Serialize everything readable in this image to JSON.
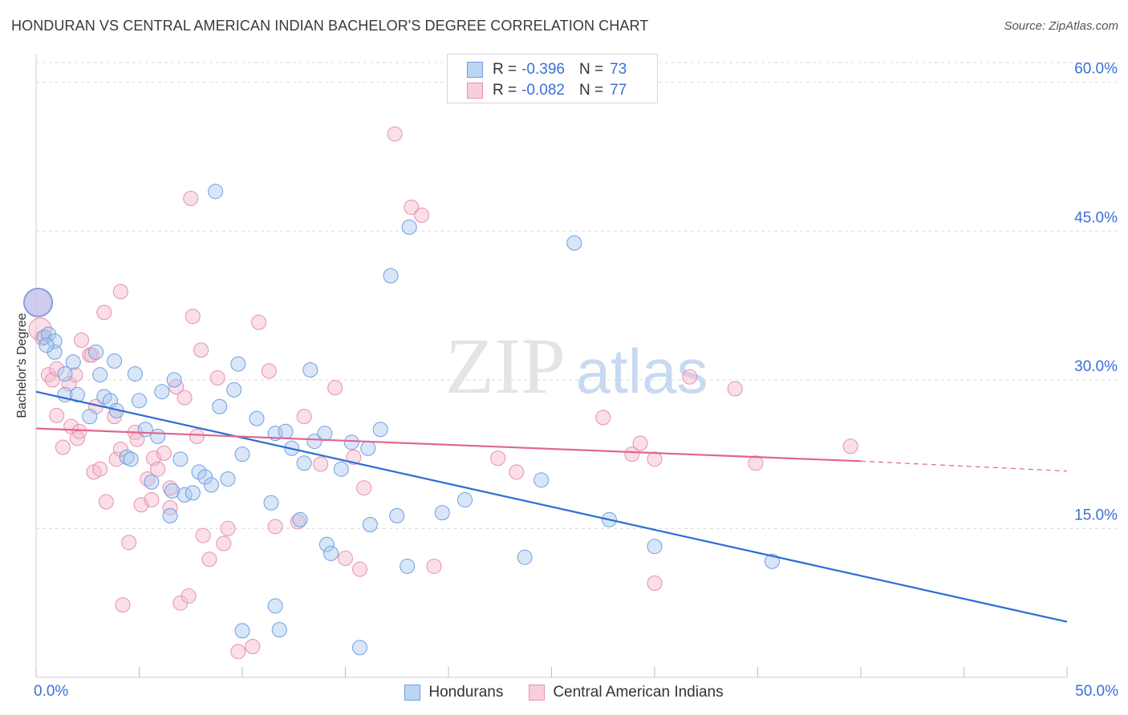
{
  "title": "HONDURAN VS CENTRAL AMERICAN INDIAN BACHELOR'S DEGREE CORRELATION CHART",
  "source": "Source: ZipAtlas.com",
  "watermark": {
    "zip": "ZIP",
    "atlas": "atlas"
  },
  "legend": {
    "r_label": "R =",
    "n_label": "N =",
    "rows": [
      {
        "r": "-0.396",
        "n": "73"
      },
      {
        "r": "-0.082",
        "n": "77"
      }
    ]
  },
  "x_tick_left": "0.0%",
  "x_tick_right": "50.0%",
  "colors": {
    "blue_fill": "#a8c8f0",
    "blue_stroke": "#6f9fe0",
    "blue_line": "#2a6fd4",
    "pink_fill": "#f5b8cc",
    "pink_stroke": "#e890ad",
    "pink_line": "#e0658f",
    "tick_text": "#3a6fd8",
    "grid": "#d9d9d9"
  },
  "chart_data": {
    "type": "scatter",
    "title": "HONDURAN VS CENTRAL AMERICAN INDIAN BACHELOR'S DEGREE CORRELATION CHART",
    "xlabel": "",
    "ylabel": "Bachelor's Degree",
    "xlim": [
      0,
      50
    ],
    "ylim": [
      0,
      62
    ],
    "y_ticks": [
      {
        "value": 15,
        "label": "15.0%"
      },
      {
        "value": 30,
        "label": "30.0%"
      },
      {
        "value": 45,
        "label": "45.0%"
      },
      {
        "value": 60,
        "label": "60.0%"
      }
    ],
    "grid": true,
    "legend_position": "top-center",
    "series": [
      {
        "name": "Hondurans",
        "r": -0.396,
        "n": 73,
        "trend": {
          "x0": 0,
          "y0": 28.8,
          "x1": 50,
          "y1": 5.6,
          "dashed_from": null
        },
        "points": [
          [
            0.1,
            37.8
          ],
          [
            0.4,
            34.3
          ],
          [
            0.6,
            34.6
          ],
          [
            0.9,
            33.9
          ],
          [
            0.9,
            32.8
          ],
          [
            1.8,
            31.8
          ],
          [
            1.4,
            30.6
          ],
          [
            2.9,
            32.8
          ],
          [
            3.1,
            30.5
          ],
          [
            3.8,
            31.9
          ],
          [
            1.4,
            28.5
          ],
          [
            2.0,
            28.5
          ],
          [
            2.6,
            26.3
          ],
          [
            3.3,
            28.3
          ],
          [
            3.6,
            27.9
          ],
          [
            3.9,
            26.9
          ],
          [
            4.8,
            30.6
          ],
          [
            5.0,
            27.9
          ],
          [
            5.3,
            25.0
          ],
          [
            5.9,
            24.3
          ],
          [
            6.1,
            28.8
          ],
          [
            6.7,
            30.0
          ],
          [
            6.5,
            16.3
          ],
          [
            4.4,
            22.2
          ],
          [
            4.6,
            22.0
          ],
          [
            5.6,
            19.7
          ],
          [
            6.6,
            18.8
          ],
          [
            7.0,
            22.0
          ],
          [
            7.2,
            18.4
          ],
          [
            7.6,
            18.6
          ],
          [
            7.9,
            20.7
          ],
          [
            8.2,
            20.2
          ],
          [
            8.5,
            19.4
          ],
          [
            8.9,
            27.3
          ],
          [
            9.3,
            20.0
          ],
          [
            9.6,
            29.0
          ],
          [
            9.8,
            31.6
          ],
          [
            10.0,
            22.5
          ],
          [
            10.7,
            26.1
          ],
          [
            11.4,
            17.6
          ],
          [
            11.6,
            24.6
          ],
          [
            12.1,
            24.8
          ],
          [
            12.4,
            23.1
          ],
          [
            12.8,
            15.9
          ],
          [
            13.0,
            21.6
          ],
          [
            13.3,
            31.0
          ],
          [
            13.5,
            23.8
          ],
          [
            14.0,
            24.6
          ],
          [
            14.1,
            13.4
          ],
          [
            14.3,
            12.5
          ],
          [
            14.8,
            21.0
          ],
          [
            15.3,
            23.7
          ],
          [
            16.1,
            23.1
          ],
          [
            16.2,
            15.4
          ],
          [
            16.7,
            25.0
          ],
          [
            17.5,
            16.3
          ],
          [
            18.0,
            11.2
          ],
          [
            19.7,
            16.6
          ],
          [
            20.8,
            17.9
          ],
          [
            23.7,
            12.1
          ],
          [
            24.5,
            19.9
          ],
          [
            26.1,
            43.8
          ],
          [
            27.8,
            15.9
          ],
          [
            30.0,
            13.2
          ],
          [
            35.7,
            11.7
          ],
          [
            18.1,
            45.4
          ],
          [
            17.2,
            40.5
          ],
          [
            8.7,
            49.0
          ],
          [
            10.0,
            4.7
          ],
          [
            11.6,
            7.2
          ],
          [
            11.8,
            4.8
          ],
          [
            15.7,
            3.0
          ],
          [
            0.5,
            33.5
          ]
        ]
      },
      {
        "name": "Central American Indians",
        "r": -0.082,
        "n": 77,
        "trend": {
          "x0": 0,
          "y0": 25.1,
          "x1": 40,
          "y1": 21.8,
          "dashed_to": 50,
          "dashed_y": 20.8
        },
        "points": [
          [
            0.2,
            35.1
          ],
          [
            0.6,
            30.5
          ],
          [
            0.8,
            30.0
          ],
          [
            1.0,
            31.1
          ],
          [
            1.3,
            23.2
          ],
          [
            1.0,
            26.4
          ],
          [
            1.6,
            29.6
          ],
          [
            1.9,
            30.5
          ],
          [
            1.7,
            25.3
          ],
          [
            2.0,
            24.1
          ],
          [
            2.1,
            24.8
          ],
          [
            2.2,
            34.0
          ],
          [
            2.6,
            32.5
          ],
          [
            2.7,
            32.5
          ],
          [
            2.9,
            27.3
          ],
          [
            2.8,
            20.7
          ],
          [
            3.1,
            21.0
          ],
          [
            3.3,
            36.8
          ],
          [
            3.4,
            17.7
          ],
          [
            3.8,
            26.3
          ],
          [
            3.9,
            22.0
          ],
          [
            4.1,
            23.0
          ],
          [
            4.2,
            7.3
          ],
          [
            4.1,
            38.9
          ],
          [
            4.5,
            13.6
          ],
          [
            4.8,
            24.7
          ],
          [
            4.9,
            24.0
          ],
          [
            5.1,
            17.4
          ],
          [
            5.4,
            20.0
          ],
          [
            5.6,
            17.9
          ],
          [
            5.7,
            22.1
          ],
          [
            5.9,
            21.0
          ],
          [
            6.2,
            22.6
          ],
          [
            6.5,
            19.1
          ],
          [
            6.5,
            17.1
          ],
          [
            6.8,
            29.3
          ],
          [
            7.0,
            7.5
          ],
          [
            7.2,
            28.2
          ],
          [
            7.4,
            8.2
          ],
          [
            7.5,
            48.3
          ],
          [
            7.6,
            36.4
          ],
          [
            7.8,
            24.3
          ],
          [
            8.0,
            33.0
          ],
          [
            8.1,
            14.3
          ],
          [
            8.4,
            11.9
          ],
          [
            8.8,
            30.2
          ],
          [
            9.1,
            13.5
          ],
          [
            9.3,
            15.0
          ],
          [
            9.8,
            2.6
          ],
          [
            10.5,
            3.1
          ],
          [
            10.8,
            35.8
          ],
          [
            11.3,
            30.9
          ],
          [
            11.6,
            15.2
          ],
          [
            12.7,
            15.7
          ],
          [
            13.0,
            26.3
          ],
          [
            13.8,
            21.5
          ],
          [
            14.5,
            29.2
          ],
          [
            15.0,
            12.0
          ],
          [
            15.7,
            10.9
          ],
          [
            15.9,
            19.1
          ],
          [
            18.2,
            47.4
          ],
          [
            18.7,
            46.6
          ],
          [
            17.4,
            54.8
          ],
          [
            19.3,
            11.2
          ],
          [
            22.4,
            22.1
          ],
          [
            23.3,
            20.7
          ],
          [
            27.5,
            26.2
          ],
          [
            28.9,
            22.5
          ],
          [
            29.3,
            23.6
          ],
          [
            30.0,
            22.0
          ],
          [
            30.0,
            9.5
          ],
          [
            31.7,
            30.3
          ],
          [
            33.9,
            29.1
          ],
          [
            34.9,
            21.6
          ],
          [
            39.5,
            23.3
          ],
          [
            0.3,
            34.2
          ],
          [
            15.4,
            22.2
          ]
        ]
      }
    ]
  }
}
